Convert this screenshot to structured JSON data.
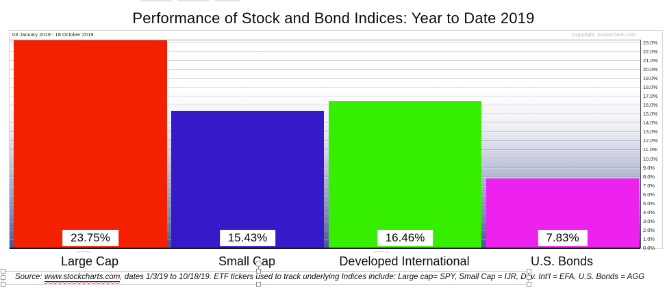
{
  "page": {
    "title": "Performance of Stock and Bond Indices: Year to Date 2019"
  },
  "chart": {
    "date_range": "03 January 2019 - 18 October 2019",
    "copyright": "Copyright, StockCharts.com"
  },
  "chart_data": {
    "type": "bar",
    "title": "Performance of Stock and Bond Indices: Year to Date 2019",
    "categories": [
      "Large Cap",
      "Small Cap",
      "Developed International",
      "U.S. Bonds"
    ],
    "values": [
      23.75,
      15.43,
      16.46,
      7.83
    ],
    "value_labels": [
      "23.75%",
      "15.43%",
      "16.46%",
      "7.83%"
    ],
    "bar_colors": [
      "#f32100",
      "#3619c9",
      "#35ee00",
      "#ee22ee"
    ],
    "xlabel": "",
    "ylabel": "",
    "ylim": [
      0,
      23.3
    ],
    "grid": true,
    "legend": null,
    "axis_side": "right",
    "y_tick_labels": [
      "0.0%",
      "1.0%",
      "2.0%",
      "3.0%",
      "4.0%",
      "5.0%",
      "6.0%",
      "7.0%",
      "8.0%",
      "9.0%",
      "10.0%",
      "11.0%",
      "12.0%",
      "13.0%",
      "14.0%",
      "15.0%",
      "16.0%",
      "17.0%",
      "18.0%",
      "19.0%",
      "20.0%",
      "21.0%",
      "22.0%",
      "23.0%"
    ]
  },
  "source_note": {
    "prefix": "Source: ",
    "link_text": "www.stockcharts.com",
    "suffix": ", dates 1/3/19 to 10/18/19.  ETF tickers used to track underlying Indices include: Large cap= SPY, Small Cap = IJR, Dev. Int'l = EFA, U.S. Bonds = AGG"
  },
  "colors": {
    "plot_gradient_top": "#ffffff",
    "plot_gradient_bottom": "#4a529a",
    "axis_text": "#26262b",
    "copyright_text": "#b7b7ba"
  }
}
